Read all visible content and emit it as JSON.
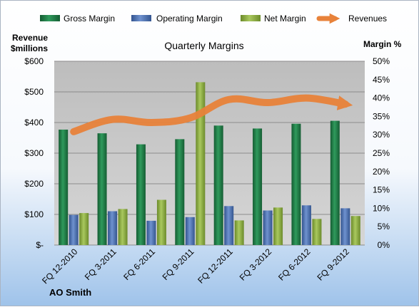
{
  "chart_data": {
    "type": "bar",
    "title": "Quarterly Margins",
    "company": "AO Smith",
    "y_left_label_line1": "Revenue",
    "y_left_label_line2": "$millions",
    "y_right_label": "Margin %",
    "categories": [
      "FQ 12-2010",
      "FQ 3-2011",
      "FQ 6-2011",
      "FQ 9-2011",
      "FQ 12-2011",
      "FQ 3-2012",
      "FQ 6-2012",
      "FQ 9-2012"
    ],
    "left_axis": {
      "min": 0,
      "max": 600,
      "step": 100,
      "tick_labels": [
        "$-",
        "$100",
        "$200",
        "$300",
        "$400",
        "$500",
        "$600"
      ]
    },
    "right_axis": {
      "min": 0,
      "max": 0.5,
      "step": 0.05,
      "tick_labels": [
        "0%",
        "5%",
        "10%",
        "15%",
        "20%",
        "25%",
        "30%",
        "35%",
        "40%",
        "45%",
        "50%"
      ]
    },
    "series": [
      {
        "name": "Gross Margin",
        "kind": "bar",
        "axis": "right",
        "color": "#1e7a45",
        "values": [
          0.314,
          0.304,
          0.274,
          0.288,
          0.325,
          0.317,
          0.33,
          0.338
        ]
      },
      {
        "name": "Operating Margin",
        "kind": "bar",
        "axis": "right",
        "color": "#4a6fb0",
        "values": [
          0.082,
          0.092,
          0.066,
          0.076,
          0.106,
          0.094,
          0.108,
          0.1
        ]
      },
      {
        "name": "Net Margin",
        "kind": "bar",
        "axis": "right",
        "color": "#8aac3f",
        "values": [
          0.087,
          0.098,
          0.123,
          0.443,
          0.067,
          0.102,
          0.071,
          0.079
        ]
      },
      {
        "name": "Revenues",
        "kind": "line",
        "axis": "left",
        "color": "#e8823a",
        "values": [
          370,
          410,
          400,
          415,
          475,
          465,
          480,
          460
        ]
      }
    ],
    "grid": true,
    "legend": "top"
  }
}
